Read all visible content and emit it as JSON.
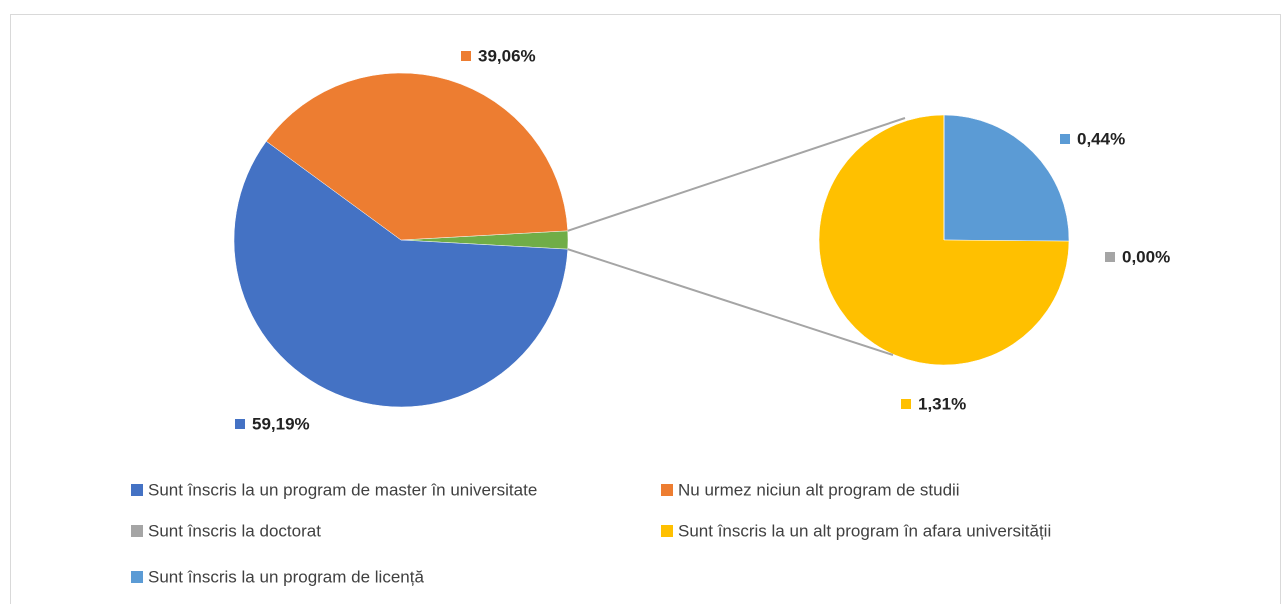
{
  "chart_data": {
    "type": "pie-of-pie",
    "series": [
      {
        "name": "Sunt înscris la un program de master în universitate",
        "color": "#4472c4",
        "values": [
          59.19
        ],
        "value_labels": [
          "59,19%"
        ]
      },
      {
        "name": "Nu urmez niciun alt program de studii",
        "color": "#ed7d31",
        "values": [
          39.06
        ],
        "value_labels": [
          "39,06%"
        ]
      },
      {
        "name": "Sunt înscris la doctorat",
        "color": "#a5a5a5",
        "values": [
          0.0
        ],
        "value_labels": [
          "0,00%"
        ]
      },
      {
        "name": "Sunt înscris la un alt program în afara universității",
        "color": "#ffc000",
        "values": [
          1.31
        ],
        "value_labels": [
          "1,31%"
        ]
      },
      {
        "name": "Sunt înscris la un program de licență",
        "color": "#5b9bd5",
        "values": [
          0.44
        ],
        "value_labels": [
          "0,44%"
        ]
      }
    ],
    "other_color": "#70ad47"
  }
}
